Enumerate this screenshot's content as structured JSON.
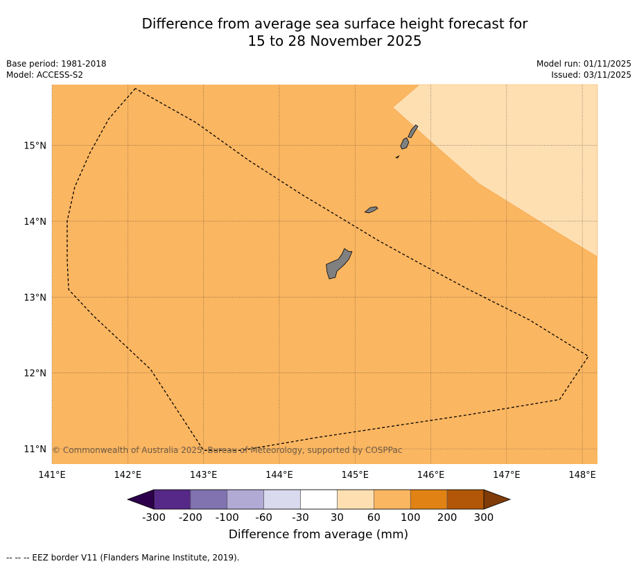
{
  "title_line1": "Difference from average sea surface height forecast for",
  "title_line2": "15 to 28 November 2025",
  "base_period": "Base period: 1981-2018",
  "model": "Model: ACCESS-S2",
  "model_run": "Model run: 01/11/2025",
  "issued": "Issued: 03/11/2025",
  "copyright": "© Commonwealth of Australia 2025, Bureau of Meteorology, supported by COSPPac",
  "footer_note": "-- -- -- EEZ border V11 (Flanders Marine Institute, 2019).",
  "colorbar_label": "Difference from average (mm)",
  "colorbar_ticks": [
    "-300",
    "-200",
    "-100",
    "-60",
    "-30",
    "30",
    "60",
    "100",
    "200",
    "300"
  ],
  "colorbar_colors": [
    "#562888",
    "#8073b0",
    "#b0aad4",
    "#d9daee",
    "#ffffff",
    "#fedfb2",
    "#fbb661",
    "#e08214",
    "#b25707"
  ],
  "colorbar_extend_low": "#2d004b",
  "colorbar_extend_high": "#7f3b08",
  "map": {
    "lon_range": [
      141,
      148.2
    ],
    "lat_range": [
      10.8,
      15.8
    ],
    "lon_ticks": [
      {
        "v": 141,
        "label": "141°E"
      },
      {
        "v": 142,
        "label": "142°E"
      },
      {
        "v": 143,
        "label": "143°E"
      },
      {
        "v": 144,
        "label": "144°E"
      },
      {
        "v": 145,
        "label": "145°E"
      },
      {
        "v": 146,
        "label": "146°E"
      },
      {
        "v": 147,
        "label": "147°E"
      },
      {
        "v": 148,
        "label": "148°E"
      }
    ],
    "lat_ticks": [
      {
        "v": 11,
        "label": "11°N"
      },
      {
        "v": 12,
        "label": "12°N"
      },
      {
        "v": 13,
        "label": "13°N"
      },
      {
        "v": 14,
        "label": "14°N"
      },
      {
        "v": 15,
        "label": "15°N"
      }
    ],
    "base_color": "#fbb661",
    "light_region_color": "#fedfb2",
    "light_region": [
      [
        145.85,
        15.8
      ],
      [
        145.5,
        15.5
      ],
      [
        146.0,
        15.05
      ],
      [
        146.63,
        14.5
      ],
      [
        147.4,
        14.02
      ],
      [
        148.2,
        13.53
      ],
      [
        148.2,
        15.8
      ]
    ],
    "eez_border": [
      [
        142.1,
        15.75
      ],
      [
        141.75,
        15.35
      ],
      [
        141.5,
        14.9
      ],
      [
        141.3,
        14.45
      ],
      [
        141.2,
        14.0
      ],
      [
        141.2,
        13.5
      ],
      [
        141.22,
        13.1
      ],
      [
        141.55,
        12.75
      ],
      [
        142.3,
        12.05
      ],
      [
        143.0,
        10.98
      ],
      [
        143.5,
        10.98
      ],
      [
        144.5,
        11.15
      ],
      [
        145.5,
        11.3
      ],
      [
        146.5,
        11.45
      ],
      [
        147.7,
        11.65
      ],
      [
        148.08,
        12.22
      ],
      [
        147.3,
        12.7
      ],
      [
        146.5,
        13.1
      ],
      [
        145.9,
        13.42
      ],
      [
        145.3,
        13.75
      ],
      [
        144.8,
        14.05
      ],
      [
        144.3,
        14.35
      ],
      [
        143.6,
        14.8
      ],
      [
        142.9,
        15.3
      ],
      [
        142.1,
        15.75
      ]
    ],
    "islands": [
      [
        [
          144.62,
          13.43
        ],
        [
          144.78,
          13.5
        ],
        [
          144.83,
          13.57
        ],
        [
          144.86,
          13.64
        ],
        [
          144.92,
          13.6
        ],
        [
          144.96,
          13.6
        ],
        [
          144.92,
          13.5
        ],
        [
          144.86,
          13.43
        ],
        [
          144.76,
          13.34
        ],
        [
          144.74,
          13.26
        ],
        [
          144.66,
          13.24
        ],
        [
          144.63,
          13.33
        ],
        [
          144.62,
          13.43
        ]
      ],
      [
        [
          145.13,
          14.12
        ],
        [
          145.2,
          14.18
        ],
        [
          145.28,
          14.19
        ],
        [
          145.3,
          14.17
        ],
        [
          145.24,
          14.13
        ],
        [
          145.18,
          14.11
        ],
        [
          145.13,
          14.12
        ]
      ],
      [
        [
          145.6,
          14.99
        ],
        [
          145.64,
          15.08
        ],
        [
          145.68,
          15.1
        ],
        [
          145.71,
          15.04
        ],
        [
          145.68,
          14.97
        ],
        [
          145.62,
          14.95
        ],
        [
          145.6,
          14.99
        ]
      ],
      [
        [
          145.7,
          15.11
        ],
        [
          145.74,
          15.2
        ],
        [
          145.8,
          15.27
        ],
        [
          145.83,
          15.25
        ],
        [
          145.78,
          15.17
        ],
        [
          145.74,
          15.1
        ],
        [
          145.7,
          15.11
        ]
      ],
      [
        [
          145.54,
          14.84
        ],
        [
          145.58,
          14.86
        ],
        [
          145.56,
          14.83
        ],
        [
          145.54,
          14.84
        ]
      ]
    ]
  }
}
